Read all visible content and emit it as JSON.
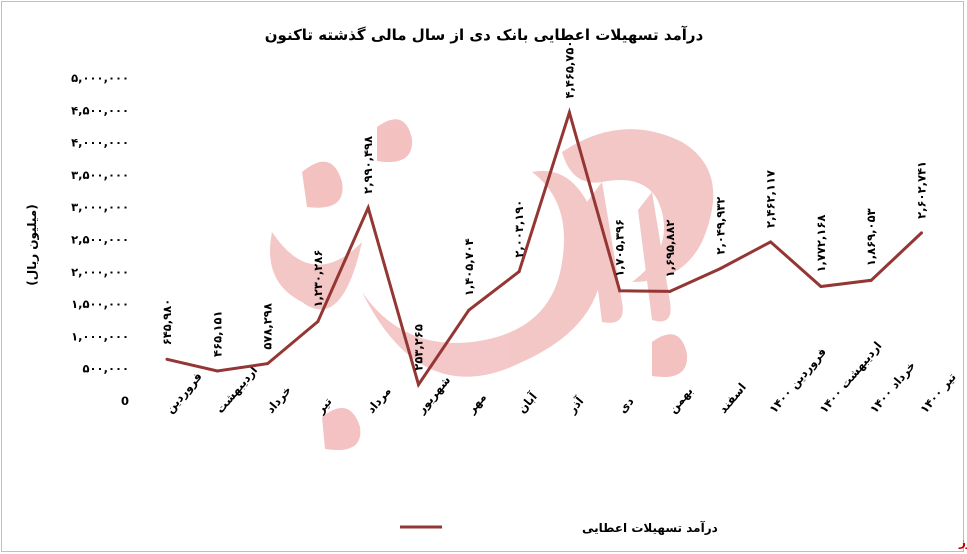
{
  "chart_data": {
    "type": "line",
    "title": "درآمد تسهیلات اعطایی بانک دی از سال مالی گذشته تاکنون",
    "ylabel": "(میلیون ریال)",
    "ylim": [
      0,
      5000000
    ],
    "yticks": [
      "0",
      "۵۰۰,۰۰۰",
      "۱,۰۰۰,۰۰۰",
      "۱,۵۰۰,۰۰۰",
      "۲,۰۰۰,۰۰۰",
      "۲,۵۰۰,۰۰۰",
      "۳,۰۰۰,۰۰۰",
      "۳,۵۰۰,۰۰۰",
      "۴,۰۰۰,۰۰۰",
      "۴,۵۰۰,۰۰۰",
      "۵,۰۰۰,۰۰۰"
    ],
    "ytick_values": [
      0,
      500000,
      1000000,
      1500000,
      2000000,
      2500000,
      3000000,
      3500000,
      4000000,
      4500000,
      5000000
    ],
    "categories": [
      "فروردین",
      "اردیبهشت",
      "خرداد",
      "تیر",
      "مرداد",
      "شهریور",
      "مهر",
      "آبان",
      "آذر",
      "دی",
      "بهمن",
      "اسفند",
      "فروردین ۱۴۰۰",
      "اردیبهشت ۱۴۰۰",
      "خرداد ۱۴۰۰",
      "تیر ۱۴۰۰"
    ],
    "series": [
      {
        "name": "درآمد تسهیلات اعطایی",
        "color": "#943634",
        "values": [
          645980,
          465151,
          578298,
          1230286,
          2990498,
          253265,
          1405704,
          2003190,
          4465750,
          1705396,
          1695882,
          2049932,
          2462117,
          1772168,
          1869053,
          2602741
        ],
        "labels": [
          "۶۴۵,۹۸۰",
          "۴۶۵,۱۵۱",
          "۵۷۸,۲۹۸",
          "۱,۲۳۰,۲۸۶",
          "۲,۹۹۰,۴۹۸",
          "۲۵۳,۲۶۵",
          "۱,۴۰۵,۷۰۴",
          "۲,۰۰۳,۱۹۰",
          "۴,۴۶۵,۷۵۰",
          "۱,۷۰۵,۳۹۶",
          "۱,۶۹۵,۸۸۲",
          "۲,۰۴۹,۹۳۲",
          "۲,۴۶۲,۱۱۷",
          "۱,۷۷۲,۱۶۸",
          "۱,۸۶۹,۰۵۳",
          "۲,۶۰۲,۷۴۱"
        ]
      }
    ],
    "grid": false,
    "legend": "bottom"
  },
  "source_label": "بورس نیوز",
  "watermark": {
    "text": "بورس نیوز",
    "color": "#e06060"
  }
}
